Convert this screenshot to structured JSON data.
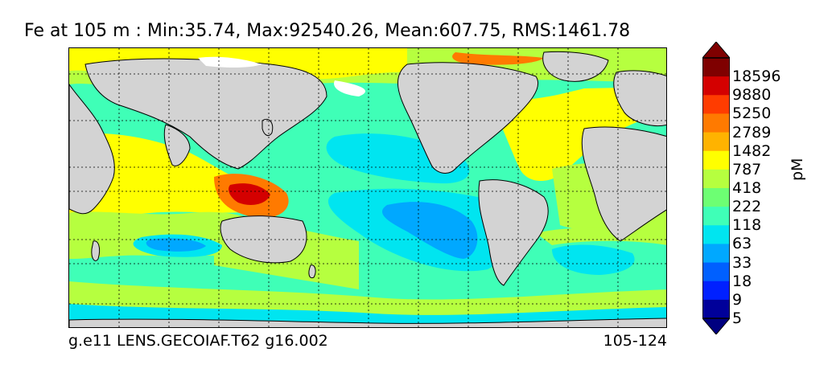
{
  "title": "Fe at 105 m : Min:35.74, Max:92540.26, Mean:607.75, RMS:1461.78",
  "footer": {
    "case": "g.e11 LENS.GECOIAF.T62 g16.002",
    "years": "105-124"
  },
  "colorbar": {
    "units": "pM",
    "ticks": [
      "18596",
      "9880",
      "5250",
      "2789",
      "1482",
      "787",
      "418",
      "222",
      "118",
      "63",
      "33",
      "18",
      "9",
      "5"
    ],
    "colors": [
      "#7f0000",
      "#d40000",
      "#ff3c00",
      "#ff7a00",
      "#ffb300",
      "#ffff00",
      "#b6ff3f",
      "#6dff73",
      "#3fffb7",
      "#00e5f0",
      "#00a8ff",
      "#0060ff",
      "#0020ff",
      "#00009a",
      "#000080"
    ],
    "over_color": "#7f0000",
    "under_color": "#000080"
  },
  "map": {
    "land_color": "#d3d3d3",
    "ice_color": "#ffffff",
    "projection": "cylindrical",
    "gridlines": "dotted"
  }
}
